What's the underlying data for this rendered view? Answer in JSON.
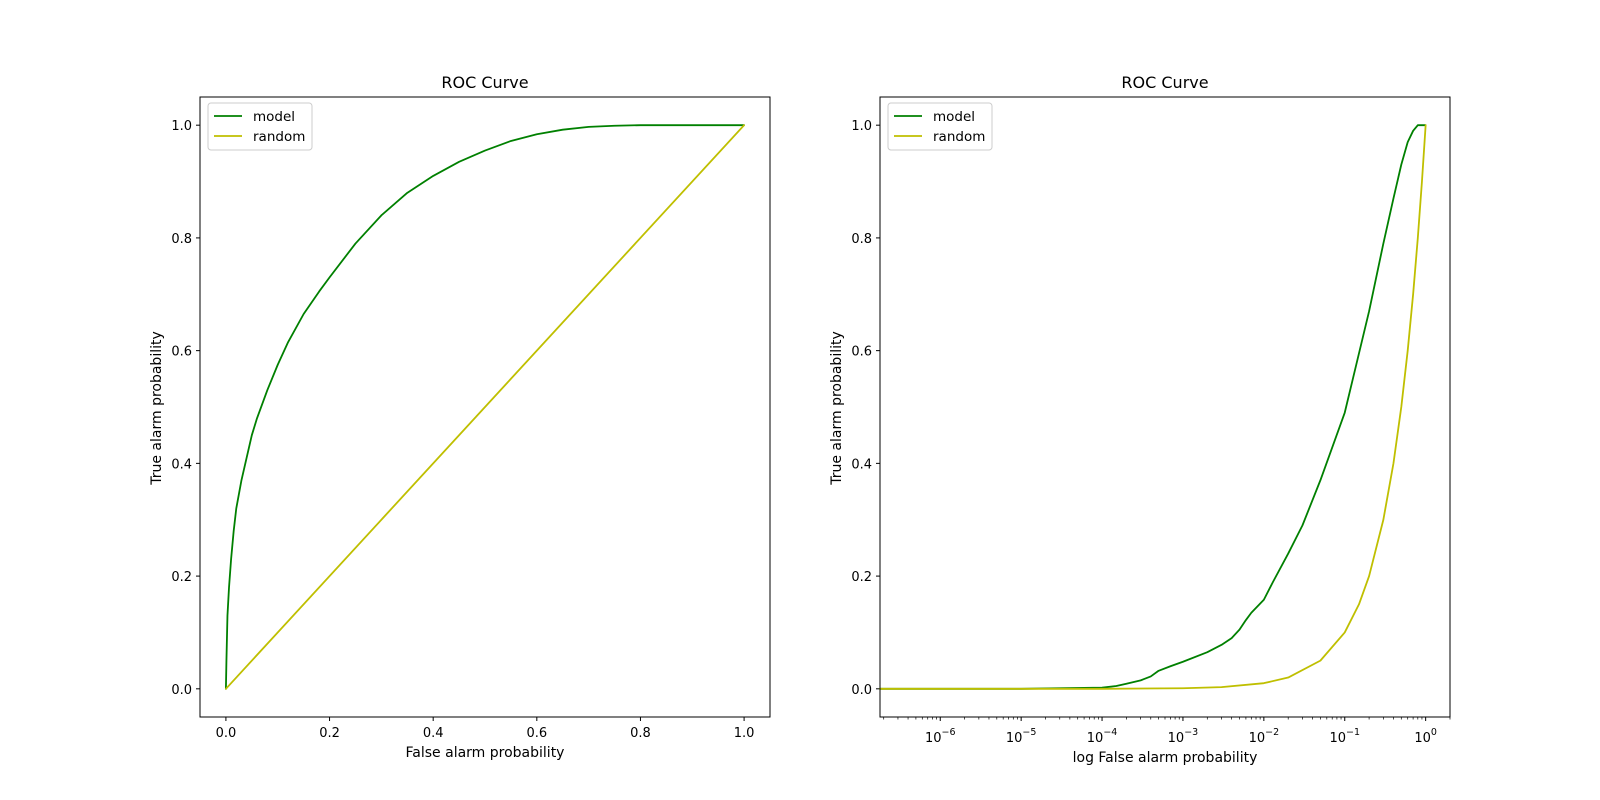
{
  "chart_data": [
    {
      "type": "line",
      "title": "ROC Curve",
      "xlabel": "False alarm probability",
      "ylabel": "True alarm probability",
      "xscale": "linear",
      "xlim": [
        -0.05,
        1.05
      ],
      "ylim": [
        -0.05,
        1.05
      ],
      "xticks": [
        0.0,
        0.2,
        0.4,
        0.6,
        0.8,
        1.0
      ],
      "xtick_labels": [
        "0.0",
        "0.2",
        "0.4",
        "0.6",
        "0.8",
        "1.0"
      ],
      "yticks": [
        0.0,
        0.2,
        0.4,
        0.6,
        0.8,
        1.0
      ],
      "ytick_labels": [
        "0.0",
        "0.2",
        "0.4",
        "0.6",
        "0.8",
        "1.0"
      ],
      "grid": false,
      "legend": "upper-left",
      "series": [
        {
          "name": "model",
          "color": "#008000",
          "x": [
            0.0,
            0.001,
            0.003,
            0.006,
            0.01,
            0.015,
            0.02,
            0.03,
            0.04,
            0.05,
            0.06,
            0.08,
            0.1,
            0.12,
            0.15,
            0.18,
            0.2,
            0.25,
            0.3,
            0.35,
            0.4,
            0.45,
            0.5,
            0.55,
            0.6,
            0.65,
            0.7,
            0.75,
            0.8,
            0.85,
            0.9,
            0.95,
            1.0
          ],
          "y": [
            0.0,
            0.05,
            0.13,
            0.18,
            0.23,
            0.28,
            0.32,
            0.37,
            0.41,
            0.45,
            0.48,
            0.53,
            0.575,
            0.615,
            0.665,
            0.705,
            0.73,
            0.79,
            0.84,
            0.88,
            0.91,
            0.935,
            0.955,
            0.972,
            0.984,
            0.992,
            0.997,
            0.999,
            1.0,
            1.0,
            1.0,
            1.0,
            1.0
          ]
        },
        {
          "name": "random",
          "color": "#bfbf00",
          "x": [
            0.0,
            1.0
          ],
          "y": [
            0.0,
            1.0
          ]
        }
      ]
    },
    {
      "type": "line",
      "title": "ROC Curve",
      "xlabel": "log False alarm probability",
      "ylabel": "True alarm probability",
      "xscale": "log",
      "xlim": [
        1.8e-07,
        2.0
      ],
      "ylim": [
        -0.05,
        1.05
      ],
      "xticks": [
        1e-06,
        1e-05,
        0.0001,
        0.001,
        0.01,
        0.1,
        1
      ],
      "xtick_labels": [
        {
          "base": "10",
          "exp": "−6"
        },
        {
          "base": "10",
          "exp": "−5"
        },
        {
          "base": "10",
          "exp": "−4"
        },
        {
          "base": "10",
          "exp": "−3"
        },
        {
          "base": "10",
          "exp": "−2"
        },
        {
          "base": "10",
          "exp": "−1"
        },
        {
          "base": "10",
          "exp": "0"
        }
      ],
      "yticks": [
        0.0,
        0.2,
        0.4,
        0.6,
        0.8,
        1.0
      ],
      "ytick_labels": [
        "0.0",
        "0.2",
        "0.4",
        "0.6",
        "0.8",
        "1.0"
      ],
      "grid": false,
      "legend": "upper-left",
      "series": [
        {
          "name": "model",
          "color": "#008000",
          "x": [
            1.8e-07,
            1e-06,
            1e-05,
            0.0001,
            0.00015,
            0.0002,
            0.0003,
            0.0004,
            0.0005,
            0.0007,
            0.001,
            0.002,
            0.003,
            0.004,
            0.005,
            0.006,
            0.007,
            0.01,
            0.013,
            0.02,
            0.03,
            0.05,
            0.1,
            0.2,
            0.3,
            0.4,
            0.5,
            0.6,
            0.7,
            0.8,
            0.9,
            1.0
          ],
          "y": [
            0.0,
            0.0,
            0.0,
            0.002,
            0.005,
            0.009,
            0.015,
            0.022,
            0.032,
            0.04,
            0.048,
            0.065,
            0.078,
            0.09,
            0.105,
            0.122,
            0.135,
            0.158,
            0.19,
            0.24,
            0.29,
            0.37,
            0.49,
            0.67,
            0.79,
            0.87,
            0.93,
            0.97,
            0.99,
            1.0,
            1.0,
            1.0
          ]
        },
        {
          "name": "random",
          "color": "#bfbf00",
          "x": [
            1.8e-07,
            1e-06,
            1e-05,
            0.0001,
            0.001,
            0.003,
            0.01,
            0.02,
            0.05,
            0.1,
            0.15,
            0.2,
            0.3,
            0.4,
            0.5,
            0.6,
            0.7,
            0.8,
            0.9,
            1.0
          ],
          "y": [
            0.0,
            0.0,
            0.0,
            0.0,
            0.001,
            0.003,
            0.01,
            0.02,
            0.05,
            0.1,
            0.15,
            0.2,
            0.3,
            0.4,
            0.5,
            0.6,
            0.7,
            0.8,
            0.9,
            1.0
          ]
        }
      ]
    }
  ]
}
